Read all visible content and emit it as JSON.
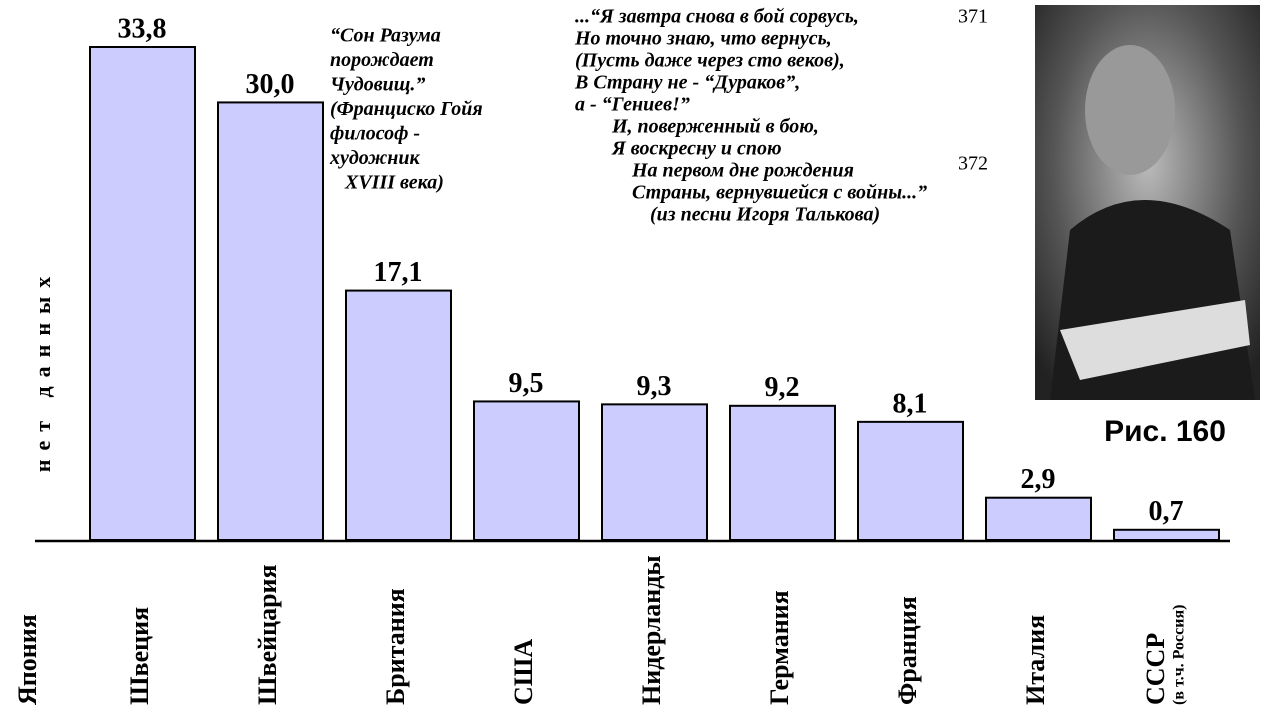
{
  "chart_data": {
    "type": "bar",
    "categories": [
      "Япония",
      "Швеция",
      "Швейцария",
      "Британия",
      "США",
      "Нидерланды",
      "Германия",
      "Франция",
      "Италия",
      "СССР"
    ],
    "category_note": "(в т.ч. Россия)",
    "values": [
      null,
      33.8,
      30.0,
      17.1,
      9.5,
      9.3,
      9.2,
      8.1,
      2.9,
      0.7
    ],
    "value_labels": [
      null,
      "33,8",
      "30,0",
      "17,1",
      "9,5",
      "9,3",
      "9,2",
      "8,1",
      "2,9",
      "0,7"
    ],
    "color": "#ccccff",
    "no_data_label": "нет данных",
    "quote": [
      "“Сон Разума",
      "порождает",
      "Чудовищ.”",
      "(Франциско Гойя",
      "философ -",
      "художник",
      "XVIII века)"
    ],
    "poem": [
      "...“Я завтра снова в бой сорвусь,",
      "Но точно знаю, что вернусь,",
      "(Пусть даже через сто веков),",
      "В Страну не - “Дураков”,",
      "а - “Гениев!”",
      "И, поверженный в бою,",
      "Я воскресну и спою",
      "На первом дне рождения",
      "Страны, вернувшейся с войны...”",
      "(из песни Игоря Талькова)"
    ],
    "line_numbers": [
      "371",
      "372"
    ]
  },
  "figure_caption": "Рис. 160"
}
